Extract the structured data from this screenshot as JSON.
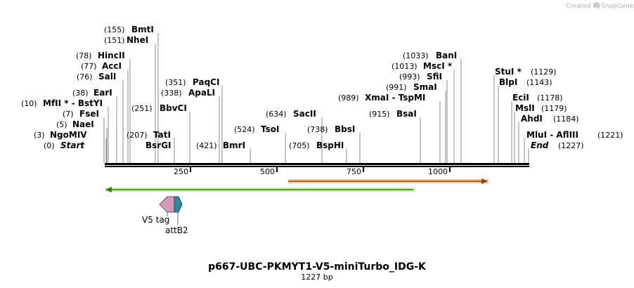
{
  "credit": {
    "prefix": "Created by",
    "brand": "SnapGene"
  },
  "sequence": {
    "name": "p667-UBC-PKMYT1-V5-miniTurbo_IDG-K",
    "length_label": "1227 bp",
    "length_bp": 1227
  },
  "ruler": {
    "ticks": [
      "250",
      "500",
      "750",
      "1000"
    ]
  },
  "sites": [
    {
      "pos": "(155)",
      "name": "BmtI"
    },
    {
      "pos": "(151)",
      "name": "NheI"
    },
    {
      "pos": "(78)",
      "name": "HincII"
    },
    {
      "pos": "(77)",
      "name": "AccI"
    },
    {
      "pos": "(76)",
      "name": "SalI"
    },
    {
      "pos": "(38)",
      "name": "EarI"
    },
    {
      "pos": "(10)",
      "name": "MfII * - BstYI"
    },
    {
      "pos": "(7)",
      "name": "FseI"
    },
    {
      "pos": "(5)",
      "name": "NaeI"
    },
    {
      "pos": "(3)",
      "name": "NgoMIV"
    },
    {
      "pos": "(0)",
      "name": "Start"
    },
    {
      "pos": "(351)",
      "name": "PaqCI"
    },
    {
      "pos": "(338)",
      "name": "ApaLI"
    },
    {
      "pos": "(251)",
      "name": "BbvCI"
    },
    {
      "pos": "(207)",
      "name": "TatI"
    },
    {
      "name": "BsrGI"
    },
    {
      "pos": "(421)",
      "name": "BmrI"
    },
    {
      "pos": "(524)",
      "name": "TsoI"
    },
    {
      "pos": "(634)",
      "name": "SacII"
    },
    {
      "pos": "(738)",
      "name": "BbsI"
    },
    {
      "pos": "(705)",
      "name": "BspHI"
    },
    {
      "pos": "(1033)",
      "name": "BanI"
    },
    {
      "pos": "(1013)",
      "name": "MscI *"
    },
    {
      "pos": "(993)",
      "name": "SfiI"
    },
    {
      "pos": "(991)",
      "name": "SmaI"
    },
    {
      "pos": "(989)",
      "name": "XmaI - TspMI"
    },
    {
      "pos": "(915)",
      "name": "BsaI"
    },
    {
      "pos": "(1129)",
      "name": "StuI *"
    },
    {
      "pos": "(1143)",
      "name": "BlpI"
    },
    {
      "pos": "(1178)",
      "name": "EciI"
    },
    {
      "pos": "(1179)",
      "name": "MslI"
    },
    {
      "pos": "(1184)",
      "name": "AhdI"
    },
    {
      "pos": "(1221)",
      "name": "MluI - AflIII"
    },
    {
      "pos": "(1227)",
      "name": "End"
    }
  ],
  "features": [
    {
      "name": "V5 tag",
      "color": "#d49ab6"
    },
    {
      "name": "attB2",
      "color": "#2e8aa0"
    }
  ],
  "orf_colors": {
    "green": "#a8e27a",
    "orange": "#e8a060"
  }
}
